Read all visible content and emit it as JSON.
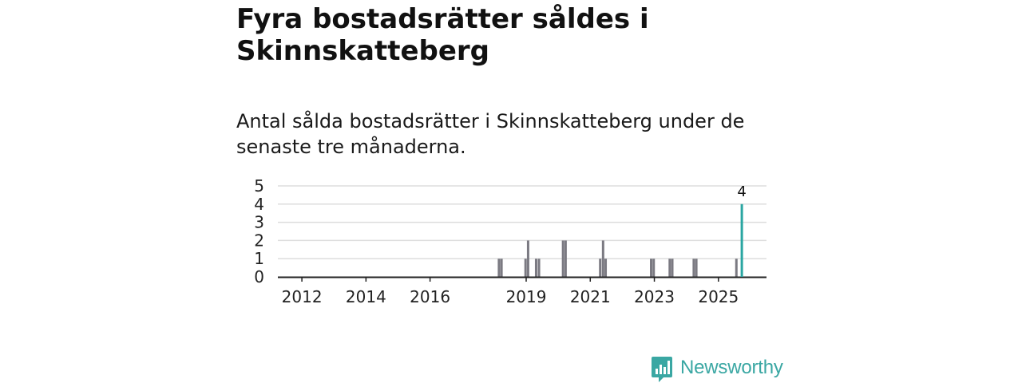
{
  "title": "Fyra bostadsrätter såldes i Skinnskatteberg",
  "subtitle": "Antal sålda bostadsrätter i Skinnskatteberg under de senaste tre månaderna.",
  "chart_data": {
    "type": "bar",
    "title": "",
    "xlabel": "",
    "ylabel": "",
    "ylim": [
      0,
      5
    ],
    "yticks": [
      0,
      1,
      2,
      3,
      4,
      5
    ],
    "xlim": [
      2011.25,
      2026.5
    ],
    "xticks": [
      "2012",
      "2014",
      "2016",
      "2019",
      "2021",
      "2023",
      "2025"
    ],
    "xtick_values": [
      2012,
      2014,
      2016,
      2019,
      2021,
      2023,
      2025
    ],
    "grid": true,
    "colors": {
      "bar": "#7b7a82",
      "highlight": "#2aa6a2",
      "grid": "#dddddd",
      "axis": "#222222"
    },
    "series": [
      {
        "name": "Antal sålda bostadsrätter",
        "points": [
          {
            "x": 2018.15,
            "value": 1
          },
          {
            "x": 2018.23,
            "value": 1
          },
          {
            "x": 2018.98,
            "value": 1
          },
          {
            "x": 2019.06,
            "value": 2
          },
          {
            "x": 2019.31,
            "value": 1
          },
          {
            "x": 2019.4,
            "value": 1
          },
          {
            "x": 2020.15,
            "value": 2
          },
          {
            "x": 2020.23,
            "value": 2
          },
          {
            "x": 2021.31,
            "value": 1
          },
          {
            "x": 2021.4,
            "value": 2
          },
          {
            "x": 2021.48,
            "value": 1
          },
          {
            "x": 2022.9,
            "value": 1
          },
          {
            "x": 2022.98,
            "value": 1
          },
          {
            "x": 2023.48,
            "value": 1
          },
          {
            "x": 2023.56,
            "value": 1
          },
          {
            "x": 2024.23,
            "value": 1
          },
          {
            "x": 2024.31,
            "value": 1
          },
          {
            "x": 2025.56,
            "value": 1
          }
        ]
      }
    ],
    "highlight": {
      "x": 2025.73,
      "value": 4,
      "label": "4"
    }
  },
  "logo": {
    "text": "Newsworthy",
    "icon": "newsworthy-logo-icon",
    "color": "#3aa7a3"
  }
}
